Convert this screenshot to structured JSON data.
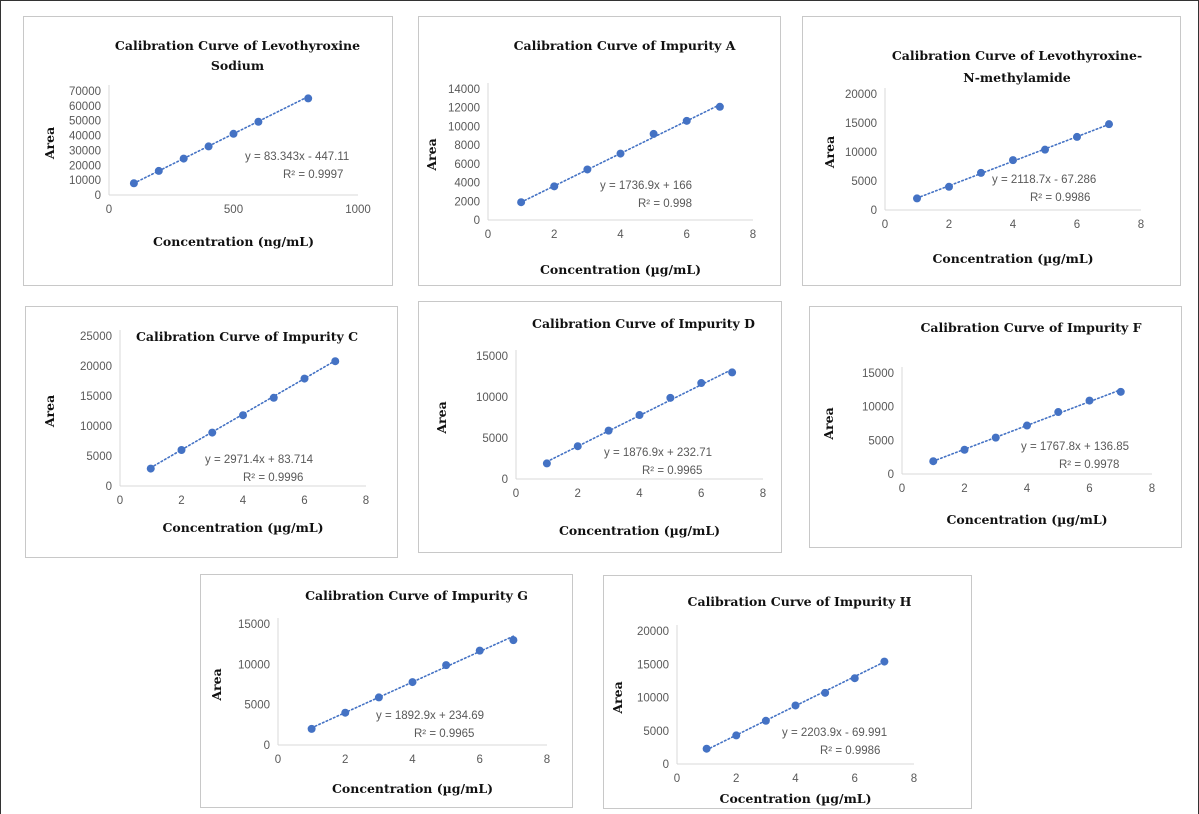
{
  "chart_data": [
    {
      "type": "scatter",
      "title": [
        "Calibration  Curve of Levothyroxine",
        "Sodium"
      ],
      "xlabel": "Concentration  (ng/mL)",
      "ylabel": "Area",
      "xlim": [
        0,
        1000
      ],
      "xticks": [
        0,
        500,
        1000
      ],
      "ylim": [
        0,
        70000
      ],
      "yticks": [
        0,
        10000,
        20000,
        30000,
        40000,
        50000,
        60000,
        70000
      ],
      "x": [
        100,
        200,
        300,
        400,
        500,
        600,
        800
      ],
      "y": [
        7900,
        16200,
        24500,
        32700,
        41200,
        49300,
        65000
      ],
      "trendline": {
        "slope": 83.343,
        "intercept": -447.11,
        "style": "dotted"
      },
      "equation": "y = 83.343x - 447.11",
      "r2": "R² = 0.9997",
      "grid": false,
      "legend": "none",
      "marker_color": "#4472C4"
    },
    {
      "type": "scatter",
      "title": [
        "Calibration  Curve of Impurity  A"
      ],
      "xlabel": "Concentration  (µg/mL)",
      "ylabel": "Area",
      "xlim": [
        0,
        8
      ],
      "xticks": [
        0,
        2,
        4,
        6,
        8
      ],
      "ylim": [
        0,
        14000
      ],
      "yticks": [
        0,
        2000,
        4000,
        6000,
        8000,
        10000,
        12000,
        14000
      ],
      "x": [
        1,
        2,
        3,
        4,
        5,
        6,
        7
      ],
      "y": [
        1900,
        3600,
        5400,
        7100,
        9200,
        10600,
        12100
      ],
      "trendline": {
        "slope": 1736.9,
        "intercept": 166,
        "style": "dotted"
      },
      "equation": "y = 1736.9x + 166",
      "r2": "R² = 0.998",
      "grid": false,
      "legend": "none",
      "marker_color": "#4472C4"
    },
    {
      "type": "scatter",
      "title": [
        "Calibration  Curve of Levothyroxine-",
        "N-methylamide"
      ],
      "xlabel": "Concentration  (µg/mL)",
      "ylabel": "Area",
      "xlim": [
        0,
        8
      ],
      "xticks": [
        0,
        2,
        4,
        6,
        8
      ],
      "ylim": [
        0,
        20000
      ],
      "yticks": [
        0,
        5000,
        10000,
        15000,
        20000
      ],
      "x": [
        1,
        2,
        3,
        4,
        5,
        6,
        7
      ],
      "y": [
        2000,
        4000,
        6400,
        8600,
        10400,
        12600,
        14800
      ],
      "trendline": {
        "slope": 2118.7,
        "intercept": -67.286,
        "style": "dotted"
      },
      "equation": "y = 2118.7x - 67.286",
      "r2": "R² = 0.9986",
      "grid": false,
      "legend": "none",
      "marker_color": "#4472C4"
    },
    {
      "type": "scatter",
      "title": [
        "Calibration  Curve of Impurity  C"
      ],
      "xlabel": "Concentration  (µg/mL)",
      "ylabel": "Area",
      "xlim": [
        0,
        8
      ],
      "xticks": [
        0,
        2,
        4,
        6,
        8
      ],
      "ylim": [
        0,
        25000
      ],
      "yticks": [
        0,
        5000,
        10000,
        15000,
        20000,
        25000
      ],
      "x": [
        1,
        2,
        3,
        4,
        5,
        6,
        7
      ],
      "y": [
        2900,
        6000,
        8900,
        11800,
        14700,
        17900,
        20800
      ],
      "trendline": {
        "slope": 2971.4,
        "intercept": 83.714,
        "style": "dotted"
      },
      "equation": "y = 2971.4x + 83.714",
      "r2": "R² = 0.9996",
      "grid": false,
      "legend": "none",
      "marker_color": "#4472C4"
    },
    {
      "type": "scatter",
      "title": [
        "Calibration  Curve of Impurity  D"
      ],
      "xlabel": "Concentration  (µg/mL)",
      "ylabel": "Area",
      "xlim": [
        0,
        8
      ],
      "xticks": [
        0,
        2,
        4,
        6,
        8
      ],
      "ylim": [
        0,
        15000
      ],
      "yticks": [
        0,
        5000,
        10000,
        15000
      ],
      "x": [
        1,
        2,
        3,
        4,
        5,
        6,
        7
      ],
      "y": [
        1900,
        4000,
        5900,
        7800,
        9900,
        11700,
        13000
      ],
      "trendline": {
        "slope": 1876.9,
        "intercept": 232.71,
        "style": "dotted"
      },
      "equation": "y = 1876.9x + 232.71",
      "r2": "R² = 0.9965",
      "grid": false,
      "legend": "none",
      "marker_color": "#4472C4"
    },
    {
      "type": "scatter",
      "title": [
        "Calibration  Curve of Impurity  F"
      ],
      "xlabel": "Concentration  (µg/mL)",
      "ylabel": "Area",
      "xlim": [
        0,
        8
      ],
      "xticks": [
        0,
        2,
        4,
        6,
        8
      ],
      "ylim": [
        0,
        15000
      ],
      "yticks": [
        0,
        5000,
        10000,
        15000
      ],
      "x": [
        1,
        2,
        3,
        4,
        5,
        6,
        7
      ],
      "y": [
        1900,
        3600,
        5400,
        7200,
        9200,
        10900,
        12200
      ],
      "trendline": {
        "slope": 1767.8,
        "intercept": 136.85,
        "style": "dotted"
      },
      "equation": "y = 1767.8x + 136.85",
      "r2": "R² = 0.9978",
      "grid": false,
      "legend": "none",
      "marker_color": "#4472C4"
    },
    {
      "type": "scatter",
      "title": [
        "Calibration  Curve of Impurity  G"
      ],
      "xlabel": "Concentration  (µg/mL)",
      "ylabel": "Area",
      "xlim": [
        0,
        8
      ],
      "xticks": [
        0,
        2,
        4,
        6,
        8
      ],
      "ylim": [
        0,
        15000
      ],
      "yticks": [
        0,
        5000,
        10000,
        15000
      ],
      "x": [
        1,
        2,
        3,
        4,
        5,
        6,
        7
      ],
      "y": [
        2000,
        4000,
        5900,
        7800,
        9900,
        11700,
        13000
      ],
      "trendline": {
        "slope": 1892.9,
        "intercept": 234.69,
        "style": "dotted"
      },
      "equation": "y = 1892.9x + 234.69",
      "r2": "R² = 0.9965",
      "grid": false,
      "legend": "none",
      "marker_color": "#4472C4"
    },
    {
      "type": "scatter",
      "title": [
        "Calibration  Curve of Impurity  H"
      ],
      "xlabel": "Cocentration  (µg/mL)",
      "ylabel": "Area",
      "xlim": [
        0,
        8
      ],
      "xticks": [
        0,
        2,
        4,
        6,
        8
      ],
      "ylim": [
        0,
        20000
      ],
      "yticks": [
        0,
        5000,
        10000,
        15000,
        20000
      ],
      "x": [
        1,
        2,
        3,
        4,
        5,
        6,
        7
      ],
      "y": [
        2300,
        4300,
        6500,
        8800,
        10700,
        12900,
        15400
      ],
      "trendline": {
        "slope": 2203.9,
        "intercept": -69.991,
        "style": "dotted"
      },
      "equation": "y = 2203.9x - 69.991",
      "r2": "R² = 0.9986",
      "grid": false,
      "legend": "none",
      "marker_color": "#4472C4"
    }
  ]
}
